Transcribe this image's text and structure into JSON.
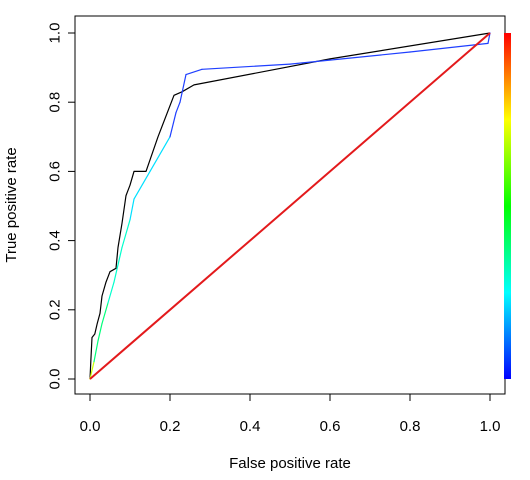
{
  "chart_data": {
    "type": "line",
    "xlabel": "False positive rate",
    "ylabel": "True positive rate",
    "xlim": [
      0,
      1
    ],
    "ylim": [
      0,
      1
    ],
    "x_ticks": [
      "0.0",
      "0.2",
      "0.4",
      "0.6",
      "0.8",
      "1.0"
    ],
    "y_ticks": [
      "0.0",
      "0.2",
      "0.4",
      "0.6",
      "0.8",
      "1.0"
    ],
    "grid": false,
    "legend": "none",
    "colorbar": {
      "placement": "right",
      "colormap": "rainbow",
      "colors": [
        "#0000ff",
        "#00ffff",
        "#00ff00",
        "#ffff00",
        "#ff0000"
      ]
    },
    "series": [
      {
        "color": "#000000",
        "points": [
          [
            0.0,
            0.0
          ],
          [
            0.002,
            0.05
          ],
          [
            0.005,
            0.12
          ],
          [
            0.012,
            0.13
          ],
          [
            0.018,
            0.16
          ],
          [
            0.025,
            0.19
          ],
          [
            0.03,
            0.24
          ],
          [
            0.04,
            0.28
          ],
          [
            0.05,
            0.31
          ],
          [
            0.065,
            0.32
          ],
          [
            0.07,
            0.38
          ],
          [
            0.08,
            0.45
          ],
          [
            0.09,
            0.53
          ],
          [
            0.1,
            0.56
          ],
          [
            0.11,
            0.6
          ],
          [
            0.14,
            0.6
          ],
          [
            0.17,
            0.7
          ],
          [
            0.21,
            0.82
          ],
          [
            0.23,
            0.83
          ],
          [
            0.26,
            0.85
          ],
          [
            0.6,
            0.925
          ],
          [
            1.0,
            1.0
          ]
        ]
      },
      {
        "color": "#1f3fff",
        "colored_by_cutoff": true,
        "points": [
          [
            0.0,
            0.0
          ],
          [
            0.01,
            0.05
          ],
          [
            0.02,
            0.11
          ],
          [
            0.03,
            0.16
          ],
          [
            0.045,
            0.22
          ],
          [
            0.06,
            0.28
          ],
          [
            0.08,
            0.38
          ],
          [
            0.1,
            0.46
          ],
          [
            0.11,
            0.52
          ],
          [
            0.15,
            0.6
          ],
          [
            0.2,
            0.7
          ],
          [
            0.215,
            0.77
          ],
          [
            0.225,
            0.8
          ],
          [
            0.24,
            0.88
          ],
          [
            0.28,
            0.895
          ],
          [
            0.5,
            0.91
          ],
          [
            0.8,
            0.945
          ],
          [
            0.995,
            0.97
          ],
          [
            1.0,
            1.0
          ]
        ]
      },
      {
        "color": "#e31a1c",
        "points": [
          [
            0.0,
            0.0
          ],
          [
            1.0,
            1.0
          ]
        ]
      }
    ]
  }
}
